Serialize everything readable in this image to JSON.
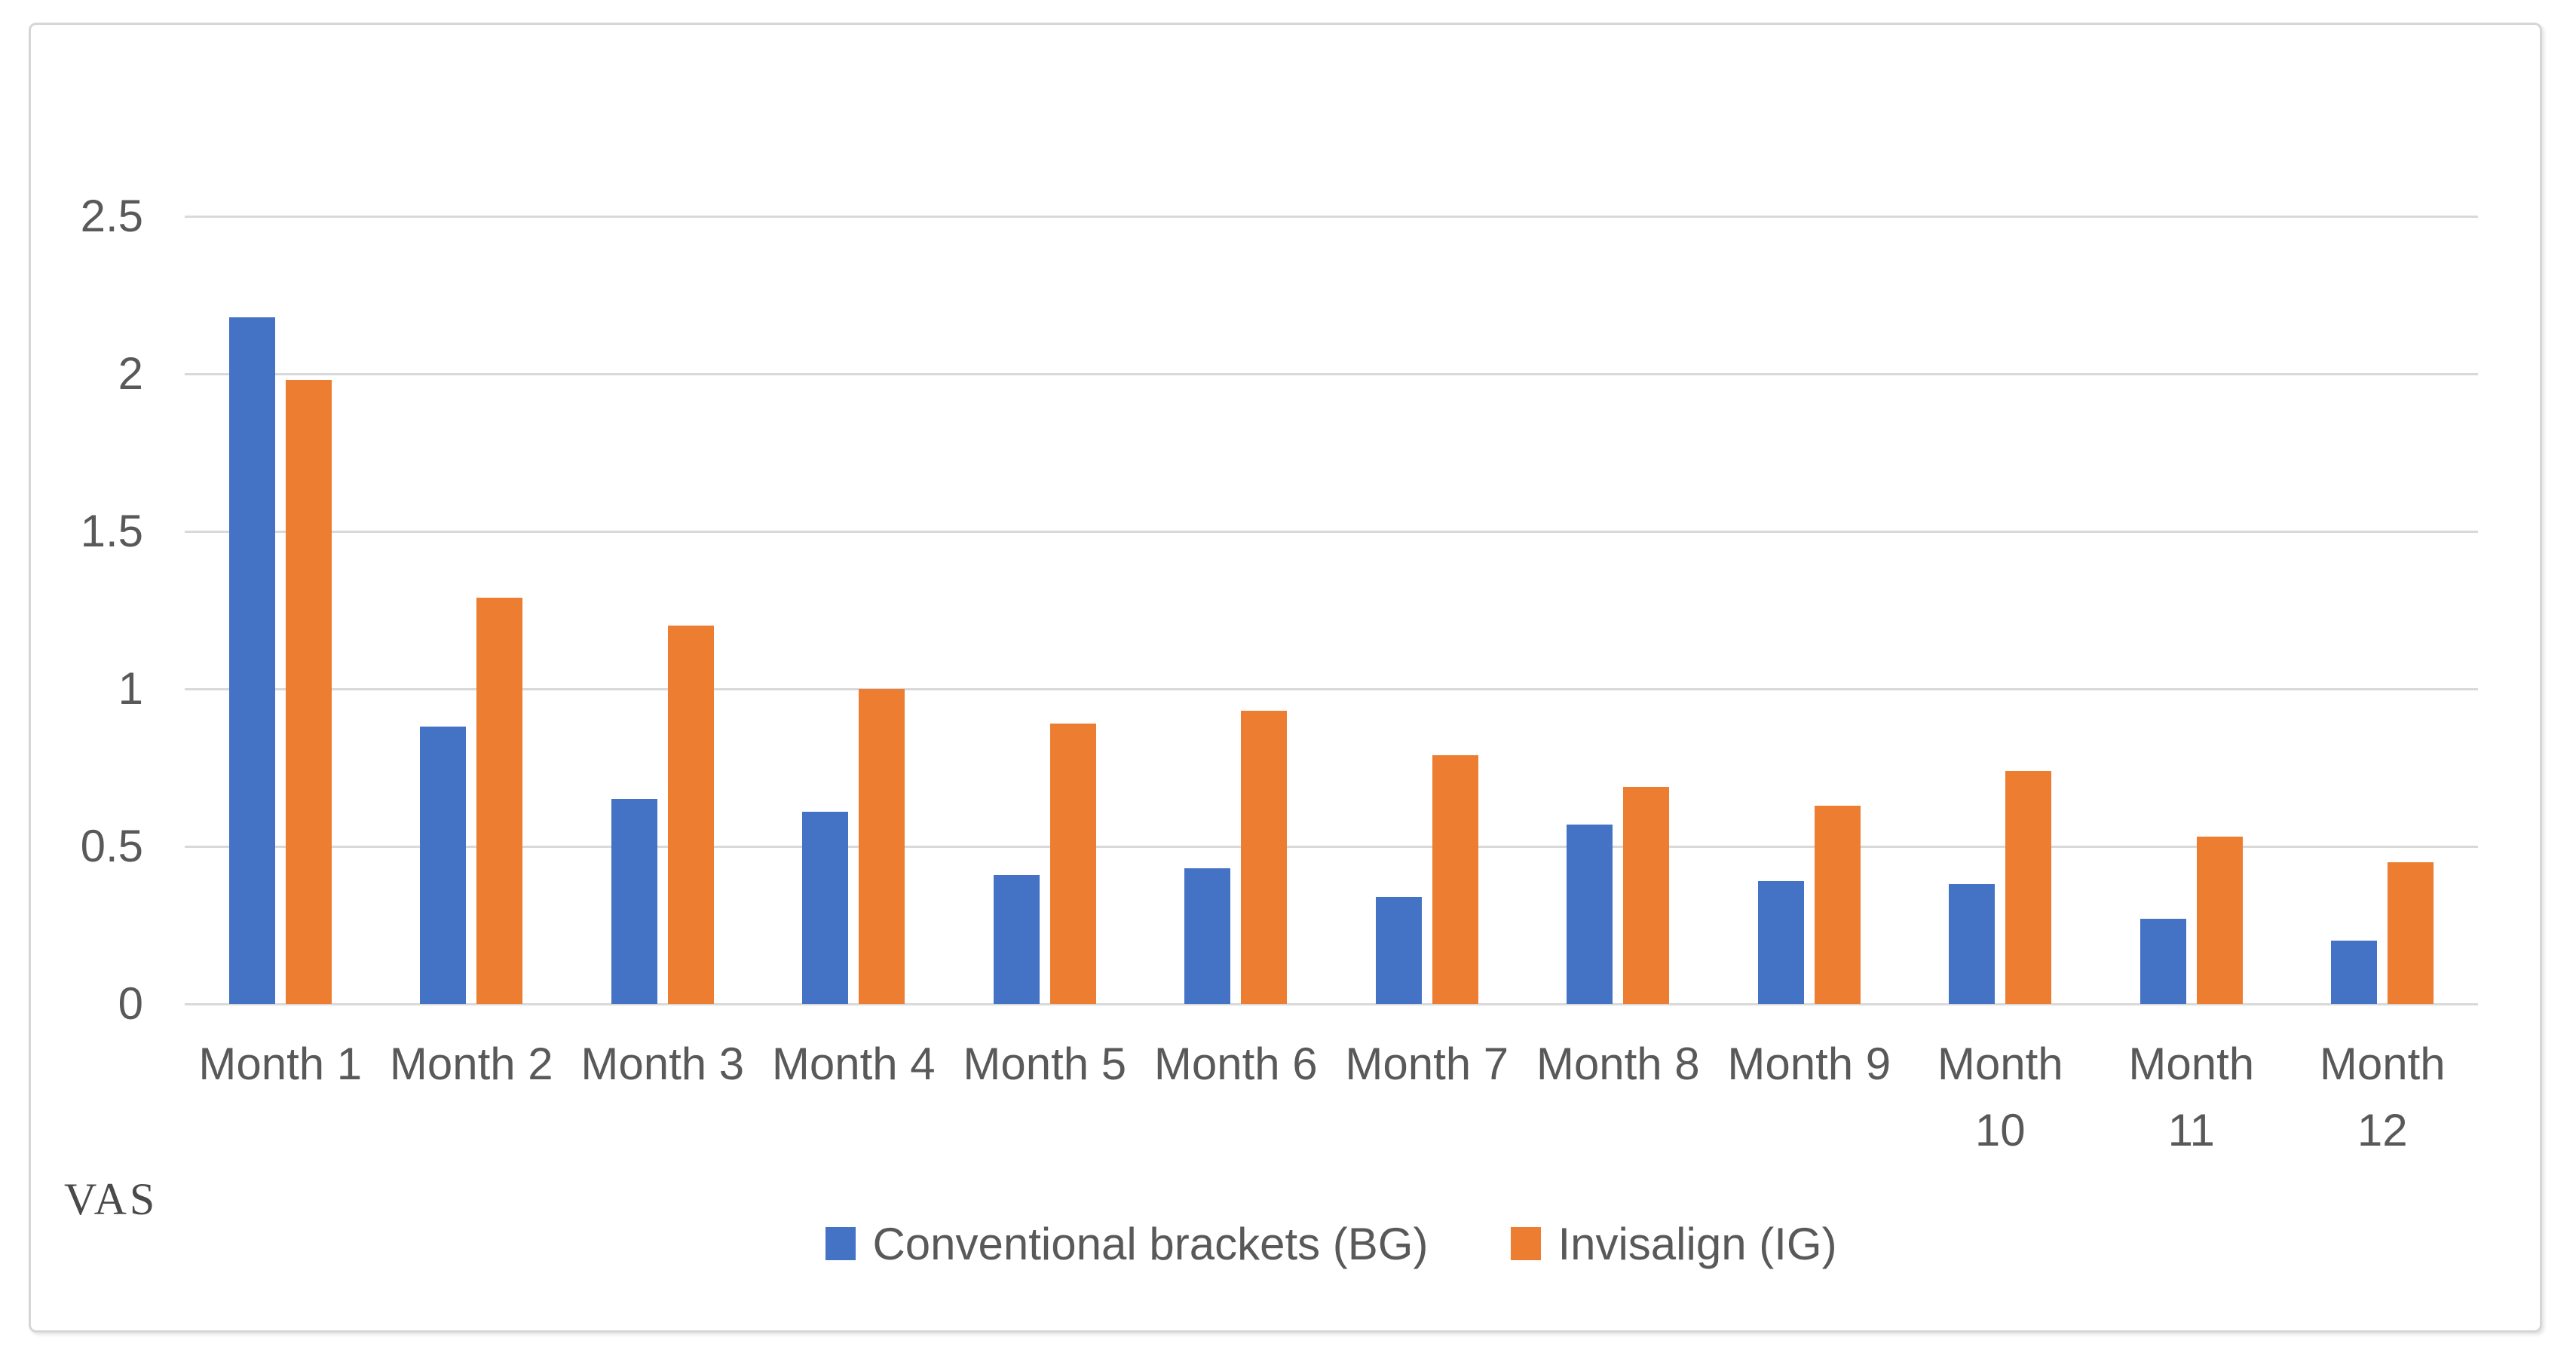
{
  "chart_data": {
    "type": "bar",
    "title": "",
    "xlabel": "",
    "ylabel": "VAS",
    "ylim": [
      0,
      2.5
    ],
    "yticks": [
      0,
      0.5,
      1,
      1.5,
      2,
      2.5
    ],
    "ytick_labels": [
      "0",
      "0.5",
      "1",
      "1.5",
      "2",
      "2.5"
    ],
    "grid": true,
    "legend_position": "bottom-center",
    "categories": [
      "Month 1",
      "Month 2",
      "Month 3",
      "Month 4",
      "Month 5",
      "Month 6",
      "Month 7",
      "Month 8",
      "Month 9",
      "Month\n10",
      "Month\n11",
      "Month\n12"
    ],
    "series": [
      {
        "name": "Conventional brackets (BG)",
        "color": "#4472C4",
        "values": [
          2.18,
          0.88,
          0.65,
          0.61,
          0.41,
          0.43,
          0.34,
          0.57,
          0.39,
          0.38,
          0.27,
          0.2
        ]
      },
      {
        "name": "Invisalign (IG)",
        "color": "#ED7D31",
        "values": [
          1.98,
          1.29,
          1.2,
          1.0,
          0.89,
          0.93,
          0.79,
          0.69,
          0.63,
          0.74,
          0.53,
          0.45
        ]
      }
    ]
  },
  "colors": {
    "gridline": "#D9D9D9",
    "tick_text": "#595959",
    "frame_border": "#D6D6D6",
    "background": "#FFFFFF"
  }
}
